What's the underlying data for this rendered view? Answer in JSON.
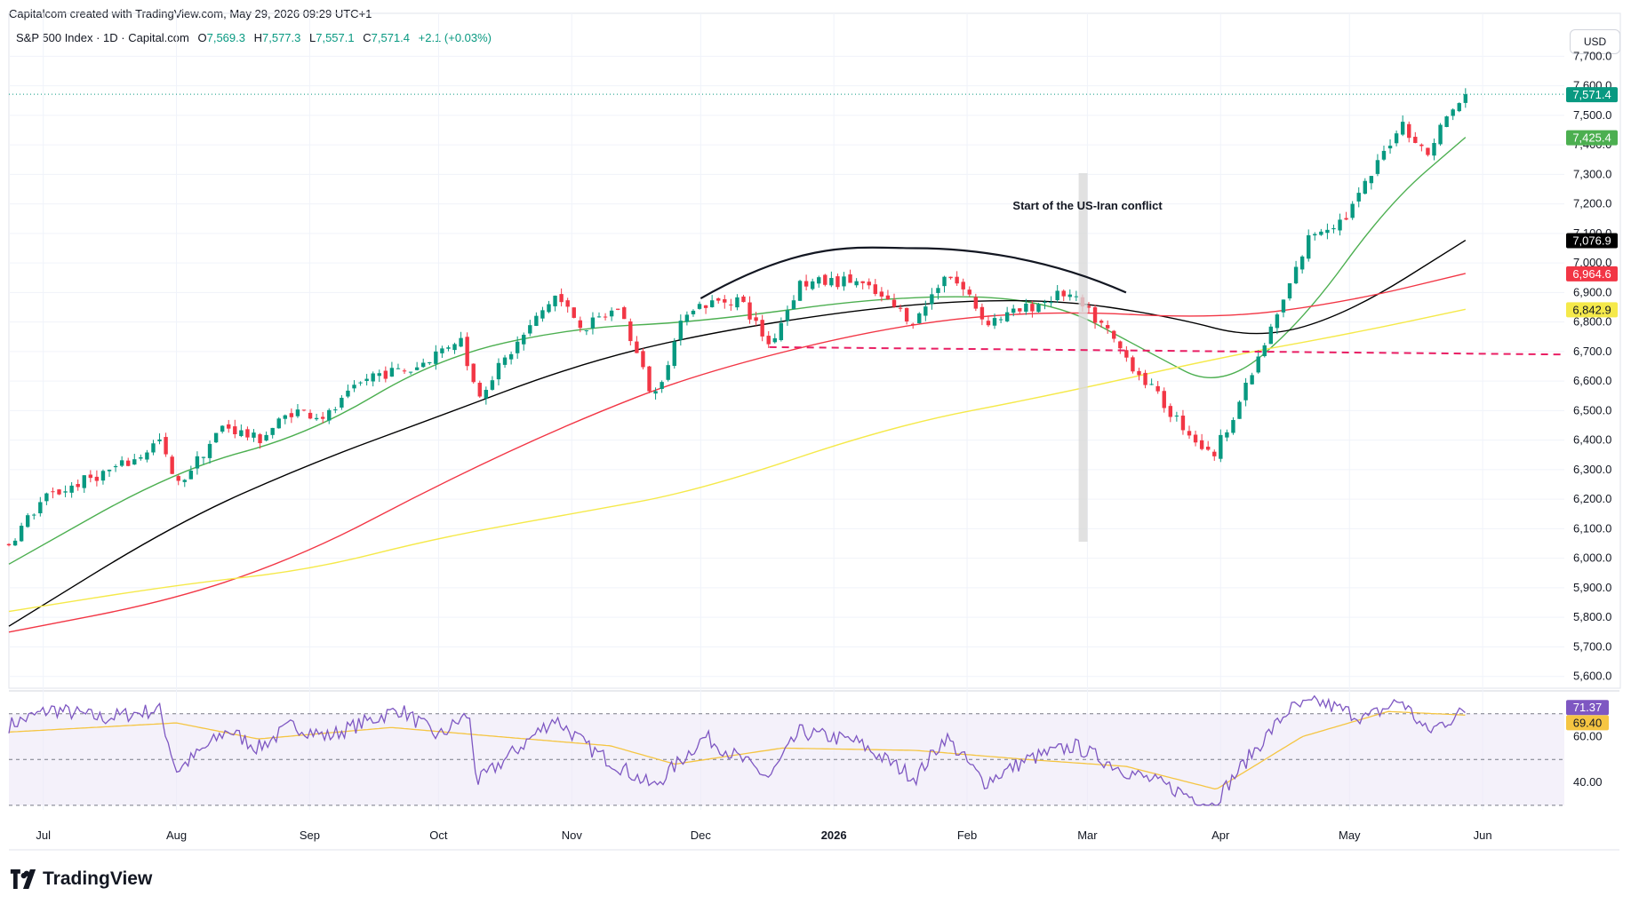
{
  "header": {
    "caption": "Capitalcom created with TradingView.com, May 29, 2026 09:29 UTC+1",
    "symbol_line": "S&P 500 Index · 1D · Capital.com",
    "open_label": "O",
    "open": "7,569.3",
    "high_label": "H",
    "high": "7,577.3",
    "low_label": "L",
    "low": "7,557.1",
    "close_label": "C",
    "close": "7,571.4",
    "change": "+2.1 (+0.03%)"
  },
  "currency": "USD",
  "brand": "TradingView",
  "colors": {
    "up": "#089981",
    "down": "#f23645",
    "ema20": "#4caf50",
    "ema50": "#000000",
    "ema100": "#f23645",
    "ema200": "#f5e94a",
    "rsi": "#7e57c2",
    "rsi_ma": "#f5c542",
    "rsi_band": "#ede7f6",
    "neckline": "#e91e63",
    "highlight": "#d9d9d9"
  },
  "annotation": {
    "text": "Start of the US-Iran conflict",
    "date": "2026-02-28"
  },
  "price_tags": [
    {
      "value": 7571.4,
      "text": "7,571.4",
      "color": "#089981"
    },
    {
      "value": 7425.4,
      "text": "7,425.4",
      "color": "#4caf50"
    },
    {
      "value": 7076.9,
      "text": "7,076.9",
      "color": "#000000"
    },
    {
      "value": 6964.6,
      "text": "6,964.6",
      "color": "#f23645"
    },
    {
      "value": 6842.9,
      "text": "6,842.9",
      "color": "#f5e94a"
    }
  ],
  "rsi_tags": [
    {
      "value": 71.37,
      "text": "71.37",
      "color": "#7e57c2"
    },
    {
      "value": 69.4,
      "text": "69.40",
      "color": "#f5c542"
    }
  ],
  "chart_data": {
    "type": "candlestick",
    "x_ticks": [
      "Jul",
      "Aug",
      "Sep",
      "Oct",
      "Nov",
      "Dec",
      "2026",
      "Feb",
      "Mar",
      "Apr",
      "May",
      "Jun"
    ],
    "y_ticks": [
      "5,600.0",
      "5,700.0",
      "5,800.0",
      "5,900.0",
      "6,000.0",
      "6,100.0",
      "6,200.0",
      "6,300.0",
      "6,400.0",
      "6,500.0",
      "6,600.0",
      "6,700.0",
      "6,800.0",
      "6,900.0",
      "7,000.0",
      "7,100.0",
      "7,200.0",
      "7,300.0",
      "7,400.0",
      "7,500.0",
      "7,600.0",
      "7,700.0"
    ],
    "ylim": [
      5560,
      7710
    ],
    "rsi_ticks": [
      "40.00",
      "60.00"
    ],
    "rsi_levels": [
      30,
      50,
      70
    ],
    "rsi_ylim": [
      28,
      80
    ],
    "series_close_anchors": [
      {
        "date": "2025-06-23",
        "close": 6050
      },
      {
        "date": "2025-07-01",
        "close": 6200
      },
      {
        "date": "2025-07-10",
        "close": 6260
      },
      {
        "date": "2025-07-22",
        "close": 6330
      },
      {
        "date": "2025-07-28",
        "close": 6400
      },
      {
        "date": "2025-08-01",
        "close": 6240
      },
      {
        "date": "2025-08-12",
        "close": 6450
      },
      {
        "date": "2025-08-20",
        "close": 6400
      },
      {
        "date": "2025-08-28",
        "close": 6500
      },
      {
        "date": "2025-09-05",
        "close": 6480
      },
      {
        "date": "2025-09-15",
        "close": 6620
      },
      {
        "date": "2025-09-25",
        "close": 6640
      },
      {
        "date": "2025-10-06",
        "close": 6750
      },
      {
        "date": "2025-10-10",
        "close": 6550
      },
      {
        "date": "2025-10-20",
        "close": 6740
      },
      {
        "date": "2025-10-28",
        "close": 6890
      },
      {
        "date": "2025-11-04",
        "close": 6780
      },
      {
        "date": "2025-11-12",
        "close": 6850
      },
      {
        "date": "2025-11-20",
        "close": 6540
      },
      {
        "date": "2025-11-28",
        "close": 6850
      },
      {
        "date": "2025-12-10",
        "close": 6880
      },
      {
        "date": "2025-12-17",
        "close": 6720
      },
      {
        "date": "2025-12-24",
        "close": 6930
      },
      {
        "date": "2026-01-06",
        "close": 6940
      },
      {
        "date": "2026-01-20",
        "close": 6800
      },
      {
        "date": "2026-01-27",
        "close": 6970
      },
      {
        "date": "2026-02-02",
        "close": 6880
      },
      {
        "date": "2026-02-05",
        "close": 6800
      },
      {
        "date": "2026-02-12",
        "close": 6830
      },
      {
        "date": "2026-02-24",
        "close": 6900
      },
      {
        "date": "2026-03-05",
        "close": 6780
      },
      {
        "date": "2026-03-10",
        "close": 6680
      },
      {
        "date": "2026-03-20",
        "close": 6500
      },
      {
        "date": "2026-03-30",
        "close": 6340
      },
      {
        "date": "2026-04-07",
        "close": 6580
      },
      {
        "date": "2026-04-15",
        "close": 6850
      },
      {
        "date": "2026-04-22",
        "close": 7100
      },
      {
        "date": "2026-04-30",
        "close": 7150
      },
      {
        "date": "2026-05-07",
        "close": 7320
      },
      {
        "date": "2026-05-13",
        "close": 7480
      },
      {
        "date": "2026-05-19",
        "close": 7360
      },
      {
        "date": "2026-05-22",
        "close": 7460
      },
      {
        "date": "2026-05-28",
        "close": 7571.4
      }
    ],
    "ma_series": [
      {
        "name": "EMA 20",
        "color": "#4caf50",
        "points": [
          [
            "2025-06-23",
            5980
          ],
          [
            "2025-08-01",
            6300
          ],
          [
            "2025-09-01",
            6420
          ],
          [
            "2025-10-01",
            6680
          ],
          [
            "2025-11-01",
            6780
          ],
          [
            "2025-12-01",
            6800
          ],
          [
            "2026-01-15",
            6890
          ],
          [
            "2026-02-20",
            6880
          ],
          [
            "2026-03-15",
            6700
          ],
          [
            "2026-04-01",
            6570
          ],
          [
            "2026-04-20",
            6800
          ],
          [
            "2026-05-10",
            7200
          ],
          [
            "2026-05-28",
            7425.4
          ]
        ]
      },
      {
        "name": "EMA 50",
        "color": "#000000",
        "points": [
          [
            "2025-06-23",
            5770
          ],
          [
            "2025-08-01",
            6120
          ],
          [
            "2025-09-01",
            6320
          ],
          [
            "2025-10-01",
            6480
          ],
          [
            "2025-11-01",
            6650
          ],
          [
            "2025-12-01",
            6760
          ],
          [
            "2026-01-15",
            6860
          ],
          [
            "2026-02-20",
            6880
          ],
          [
            "2026-03-20",
            6820
          ],
          [
            "2026-04-10",
            6740
          ],
          [
            "2026-05-01",
            6830
          ],
          [
            "2026-05-28",
            7076.9
          ]
        ]
      },
      {
        "name": "EMA 100",
        "color": "#f23645",
        "points": [
          [
            "2025-06-23",
            5750
          ],
          [
            "2025-08-01",
            5860
          ],
          [
            "2025-09-01",
            6020
          ],
          [
            "2025-10-01",
            6250
          ],
          [
            "2025-11-01",
            6460
          ],
          [
            "2025-12-01",
            6630
          ],
          [
            "2026-01-15",
            6790
          ],
          [
            "2026-02-20",
            6840
          ],
          [
            "2026-04-01",
            6810
          ],
          [
            "2026-05-01",
            6870
          ],
          [
            "2026-05-28",
            6964.6
          ]
        ]
      },
      {
        "name": "EMA 200",
        "color": "#f5e94a",
        "points": [
          [
            "2025-06-23",
            5820
          ],
          [
            "2025-08-01",
            5910
          ],
          [
            "2025-09-01",
            5960
          ],
          [
            "2025-10-01",
            6070
          ],
          [
            "2025-11-01",
            6150
          ],
          [
            "2025-12-01",
            6230
          ],
          [
            "2026-01-15",
            6450
          ],
          [
            "2026-02-20",
            6550
          ],
          [
            "2026-04-01",
            6680
          ],
          [
            "2026-05-01",
            6760
          ],
          [
            "2026-05-28",
            6842.9
          ]
        ]
      }
    ],
    "neckline": {
      "from": [
        "2025-12-17",
        6715
      ],
      "to": [
        "2026-06-20",
        6690
      ]
    },
    "arc": {
      "from": [
        "2025-12-01",
        6880
      ],
      "peak": [
        "2026-01-20",
        7050
      ],
      "to": [
        "2026-03-10",
        6900
      ]
    },
    "rsi_anchors": [
      {
        "date": "2025-06-23",
        "rsi": 65
      },
      {
        "date": "2025-07-03",
        "rsi": 72
      },
      {
        "date": "2025-07-15",
        "rsi": 68
      },
      {
        "date": "2025-07-28",
        "rsi": 72
      },
      {
        "date": "2025-08-01",
        "rsi": 45
      },
      {
        "date": "2025-08-13",
        "rsi": 63
      },
      {
        "date": "2025-08-20",
        "rsi": 55
      },
      {
        "date": "2025-08-28",
        "rsi": 65
      },
      {
        "date": "2025-09-05",
        "rsi": 60
      },
      {
        "date": "2025-09-22",
        "rsi": 72
      },
      {
        "date": "2025-10-01",
        "rsi": 60
      },
      {
        "date": "2025-10-08",
        "rsi": 70
      },
      {
        "date": "2025-10-10",
        "rsi": 40
      },
      {
        "date": "2025-10-28",
        "rsi": 68
      },
      {
        "date": "2025-11-05",
        "rsi": 55
      },
      {
        "date": "2025-11-20",
        "rsi": 38
      },
      {
        "date": "2025-12-02",
        "rsi": 60
      },
      {
        "date": "2025-12-17",
        "rsi": 42
      },
      {
        "date": "2025-12-24",
        "rsi": 62
      },
      {
        "date": "2026-01-06",
        "rsi": 58
      },
      {
        "date": "2026-01-20",
        "rsi": 42
      },
      {
        "date": "2026-01-27",
        "rsi": 60
      },
      {
        "date": "2026-02-05",
        "rsi": 40
      },
      {
        "date": "2026-02-15",
        "rsi": 50
      },
      {
        "date": "2026-02-26",
        "rsi": 56
      },
      {
        "date": "2026-03-10",
        "rsi": 45
      },
      {
        "date": "2026-03-20",
        "rsi": 38
      },
      {
        "date": "2026-03-30",
        "rsi": 30
      },
      {
        "date": "2026-04-08",
        "rsi": 52
      },
      {
        "date": "2026-04-17",
        "rsi": 72
      },
      {
        "date": "2026-04-24",
        "rsi": 75
      },
      {
        "date": "2026-05-05",
        "rsi": 68
      },
      {
        "date": "2026-05-13",
        "rsi": 76
      },
      {
        "date": "2026-05-19",
        "rsi": 62
      },
      {
        "date": "2026-05-28",
        "rsi": 71.37
      }
    ],
    "rsi_ma_anchors": [
      {
        "date": "2025-06-23",
        "rsi": 62
      },
      {
        "date": "2025-08-01",
        "rsi": 66
      },
      {
        "date": "2025-08-20",
        "rsi": 59
      },
      {
        "date": "2025-09-20",
        "rsi": 64
      },
      {
        "date": "2025-10-15",
        "rsi": 60
      },
      {
        "date": "2025-11-10",
        "rsi": 56
      },
      {
        "date": "2025-11-25",
        "rsi": 48
      },
      {
        "date": "2025-12-20",
        "rsi": 55
      },
      {
        "date": "2026-01-20",
        "rsi": 54
      },
      {
        "date": "2026-02-15",
        "rsi": 50
      },
      {
        "date": "2026-03-10",
        "rsi": 47
      },
      {
        "date": "2026-03-31",
        "rsi": 37
      },
      {
        "date": "2026-04-20",
        "rsi": 60
      },
      {
        "date": "2026-05-10",
        "rsi": 71
      },
      {
        "date": "2026-05-28",
        "rsi": 69.4
      }
    ]
  }
}
